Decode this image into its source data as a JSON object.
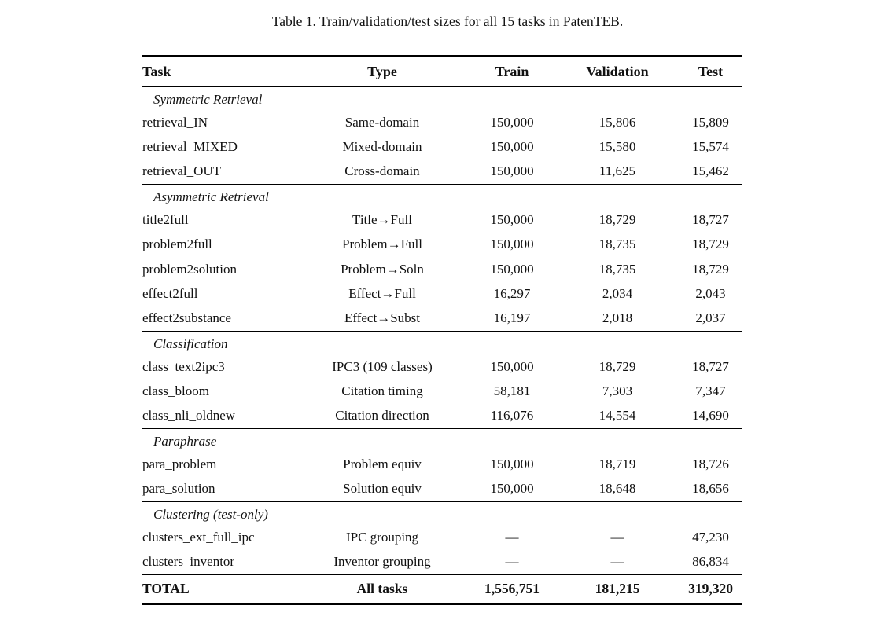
{
  "caption": "Table 1. Train/validation/test sizes for all 15 tasks in PatenTEB.",
  "table": {
    "columns": [
      "Task",
      "Type",
      "Train",
      "Validation",
      "Test"
    ],
    "sections": [
      {
        "name": "Symmetric Retrieval",
        "rows": [
          {
            "task": "retrieval_IN",
            "type": "Same-domain",
            "train": "150,000",
            "validation": "15,806",
            "test": "15,809"
          },
          {
            "task": "retrieval_MIXED",
            "type": "Mixed-domain",
            "train": "150,000",
            "validation": "15,580",
            "test": "15,574"
          },
          {
            "task": "retrieval_OUT",
            "type": "Cross-domain",
            "train": "150,000",
            "validation": "11,625",
            "test": "15,462"
          }
        ]
      },
      {
        "name": "Asymmetric Retrieval",
        "rows": [
          {
            "task": "title2full",
            "type": "Title→Full",
            "train": "150,000",
            "validation": "18,729",
            "test": "18,727"
          },
          {
            "task": "problem2full",
            "type": "Problem→Full",
            "train": "150,000",
            "validation": "18,735",
            "test": "18,729"
          },
          {
            "task": "problem2solution",
            "type": "Problem→Soln",
            "train": "150,000",
            "validation": "18,735",
            "test": "18,729"
          },
          {
            "task": "effect2full",
            "type": "Effect→Full",
            "train": "16,297",
            "validation": "2,034",
            "test": "2,043"
          },
          {
            "task": "effect2substance",
            "type": "Effect→Subst",
            "train": "16,197",
            "validation": "2,018",
            "test": "2,037"
          }
        ]
      },
      {
        "name": "Classification",
        "rows": [
          {
            "task": "class_text2ipc3",
            "type": "IPC3 (109 classes)",
            "train": "150,000",
            "validation": "18,729",
            "test": "18,727"
          },
          {
            "task": "class_bloom",
            "type": "Citation timing",
            "train": "58,181",
            "validation": "7,303",
            "test": "7,347"
          },
          {
            "task": "class_nli_oldnew",
            "type": "Citation direction",
            "train": "116,076",
            "validation": "14,554",
            "test": "14,690"
          }
        ]
      },
      {
        "name": "Paraphrase",
        "rows": [
          {
            "task": "para_problem",
            "type": "Problem equiv",
            "train": "150,000",
            "validation": "18,719",
            "test": "18,726"
          },
          {
            "task": "para_solution",
            "type": "Solution equiv",
            "train": "150,000",
            "validation": "18,648",
            "test": "18,656"
          }
        ]
      },
      {
        "name": "Clustering (test-only)",
        "rows": [
          {
            "task": "clusters_ext_full_ipc",
            "type": "IPC grouping",
            "train": "—",
            "validation": "—",
            "test": "47,230"
          },
          {
            "task": "clusters_inventor",
            "type": "Inventor grouping",
            "train": "—",
            "validation": "—",
            "test": "86,834"
          }
        ]
      }
    ],
    "total": {
      "task": "TOTAL",
      "type": "All tasks",
      "train": "1,556,751",
      "validation": "181,215",
      "test": "319,320"
    }
  }
}
